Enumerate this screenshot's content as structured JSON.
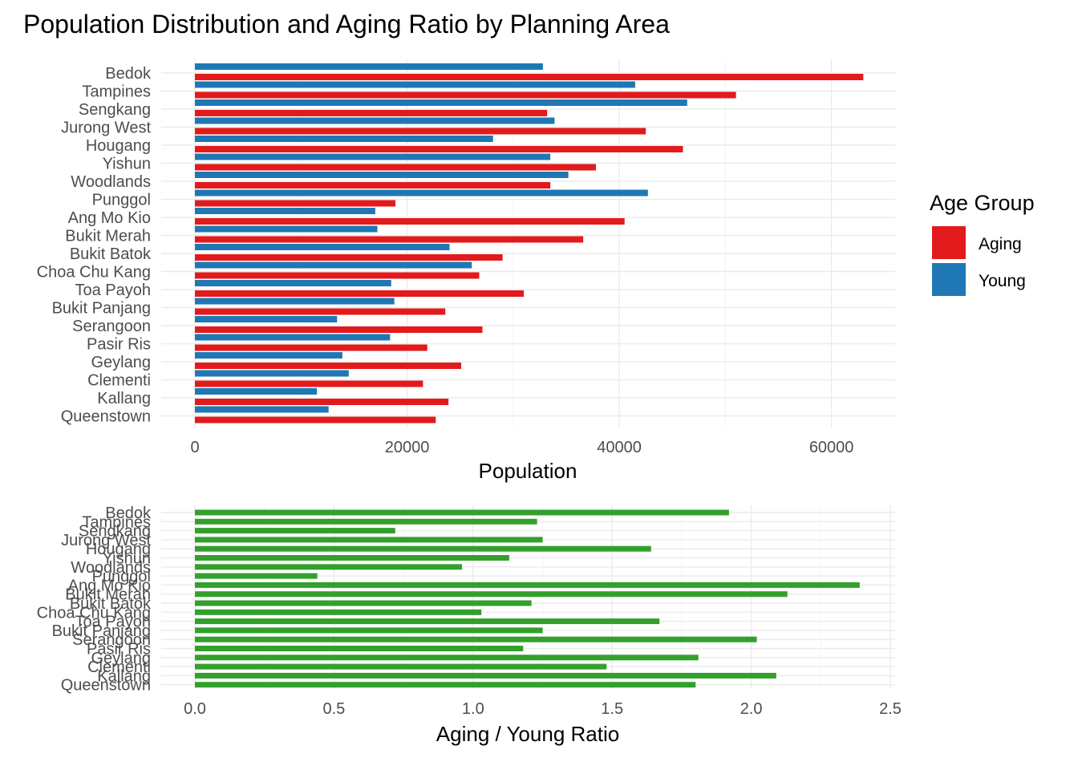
{
  "title": "Population Distribution and Aging Ratio by Planning Area",
  "colors": {
    "Aging": "#e31a1c",
    "Young": "#1f78b4",
    "ratio": "#33a02c"
  },
  "legend": {
    "title": "Age Group",
    "position": "right",
    "items": [
      {
        "label": "Aging",
        "color": "#e31a1c"
      },
      {
        "label": "Young",
        "color": "#1f78b4"
      }
    ]
  },
  "chart_data": [
    {
      "type": "bar",
      "orientation": "horizontal",
      "xlabel": "Population",
      "ylabel": "",
      "xlim": [
        0,
        66000
      ],
      "xticks": [
        0,
        20000,
        40000,
        60000
      ],
      "grid": true,
      "categories": [
        "Bedok",
        "Tampines",
        "Sengkang",
        "Jurong West",
        "Hougang",
        "Yishun",
        "Woodlands",
        "Punggol",
        "Ang Mo Kio",
        "Bukit Merah",
        "Bukit Batok",
        "Choa Chu Kang",
        "Toa Payoh",
        "Bukit Panjang",
        "Serangoon",
        "Pasir Ris",
        "Geylang",
        "Clementi",
        "Kallang",
        "Queenstown"
      ],
      "series": [
        {
          "name": "Aging",
          "values": [
            63000,
            51000,
            33200,
            42500,
            46000,
            37800,
            33500,
            18900,
            40500,
            36600,
            29000,
            26800,
            31000,
            23600,
            27100,
            21900,
            25100,
            21500,
            23900,
            22700
          ]
        },
        {
          "name": "Young",
          "values": [
            32800,
            41500,
            46400,
            33900,
            28100,
            33500,
            35200,
            42700,
            17000,
            17200,
            24000,
            26100,
            18500,
            18800,
            13400,
            18400,
            13900,
            14500,
            11500,
            12600
          ]
        }
      ]
    },
    {
      "type": "bar",
      "orientation": "horizontal",
      "xlabel": "Aging / Young Ratio",
      "ylabel": "",
      "xlim": [
        0,
        2.5
      ],
      "xticks": [
        "0.0",
        "0.5",
        "1.0",
        "1.5",
        "2.0",
        "2.5"
      ],
      "grid": true,
      "categories": [
        "Bedok",
        "Tampines",
        "Sengkang",
        "Jurong West",
        "Hougang",
        "Yishun",
        "Woodlands",
        "Punggol",
        "Ang Mo Kio",
        "Bukit Merah",
        "Bukit Batok",
        "Choa Chu Kang",
        "Toa Payoh",
        "Bukit Panjang",
        "Serangoon",
        "Pasir Ris",
        "Geylang",
        "Clementi",
        "Kallang",
        "Queenstown"
      ],
      "values": [
        1.92,
        1.23,
        0.72,
        1.25,
        1.64,
        1.13,
        0.96,
        0.44,
        2.39,
        2.13,
        1.21,
        1.03,
        1.67,
        1.25,
        2.02,
        1.18,
        1.81,
        1.48,
        2.09,
        1.8
      ]
    }
  ]
}
